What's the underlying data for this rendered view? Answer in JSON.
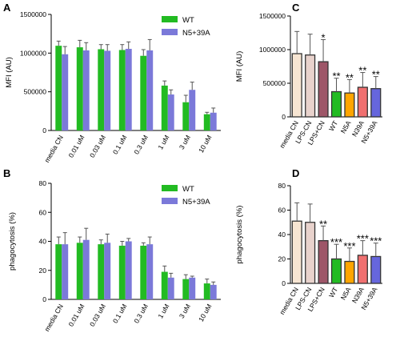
{
  "chart_data": [
    {
      "panel": "A",
      "type": "bar",
      "ylabel": "MFI (AU)",
      "ylim": [
        0,
        1500000
      ],
      "yticks": [
        "0",
        "500000",
        "1000000",
        "1500000"
      ],
      "categories": [
        "media CN",
        "0.01 uM",
        "0.03 uM",
        "0.1 uM",
        "0.3 uM",
        "1 uM",
        "3 uM",
        "10 uM"
      ],
      "legend": "top-right",
      "series": [
        {
          "name": "WT",
          "color": "#22bb22",
          "values": [
            1095000,
            1075000,
            1050000,
            1040000,
            965000,
            580000,
            365000,
            210000
          ],
          "errors": [
            60000,
            90000,
            60000,
            70000,
            80000,
            60000,
            90000,
            25000
          ]
        },
        {
          "name": "N5+39A",
          "color": "#7b79d9",
          "values": [
            985000,
            1035000,
            1030000,
            1055000,
            1035000,
            465000,
            525000,
            230000
          ],
          "errors": [
            100000,
            100000,
            80000,
            90000,
            140000,
            60000,
            100000,
            60000
          ]
        }
      ]
    },
    {
      "panel": "B",
      "type": "bar",
      "ylabel": "phagocytosis (%)",
      "ylim": [
        0,
        80
      ],
      "yticks": [
        "0",
        "20",
        "40",
        "60",
        "80"
      ],
      "categories": [
        "media CN",
        "0.01 uM",
        "0.03 uM",
        "0.1 uM",
        "0.3 uM",
        "1 uM",
        "3 uM",
        "10 uM"
      ],
      "legend": "top-right",
      "series": [
        {
          "name": "WT",
          "color": "#22bb22",
          "values": [
            38,
            39,
            38,
            37,
            37,
            19,
            14,
            11
          ],
          "errors": [
            5,
            4,
            3,
            3,
            2,
            4,
            3,
            3
          ]
        },
        {
          "name": "N5+39A",
          "color": "#7b79d9",
          "values": [
            38,
            41,
            39,
            40,
            38,
            15,
            15,
            10
          ],
          "errors": [
            8,
            8,
            6,
            2,
            5,
            3,
            1,
            2
          ]
        }
      ]
    },
    {
      "panel": "C",
      "type": "bar",
      "ylabel": "MFI (AU)",
      "ylim": [
        0,
        1500000
      ],
      "yticks": [
        "0",
        "500000",
        "1000000",
        "1500000"
      ],
      "categories": [
        "media CN",
        "LPS-CN",
        "LPS+CN",
        "WT",
        "N5A",
        "N39A",
        "N5+39A"
      ],
      "colors": [
        "#f7e5d2",
        "#e8d2cc",
        "#9e5668",
        "#22bb22",
        "#ffa500",
        "#f07070",
        "#6666dd"
      ],
      "values": [
        940000,
        920000,
        820000,
        375000,
        355000,
        440000,
        420000
      ],
      "errors": [
        330000,
        310000,
        330000,
        200000,
        200000,
        220000,
        180000
      ],
      "significance": [
        "",
        "",
        "*",
        "**",
        "**",
        "**",
        "**"
      ]
    },
    {
      "panel": "D",
      "type": "bar",
      "ylabel": "phagocytosis (%)",
      "ylim": [
        0,
        80
      ],
      "yticks": [
        "0",
        "20",
        "40",
        "60",
        "80"
      ],
      "categories": [
        "media CN",
        "LPS-CN",
        "LPS+CN",
        "WT",
        "N5A",
        "N39A",
        "N5+39A"
      ],
      "colors": [
        "#f7e5d2",
        "#e8d2cc",
        "#9e5668",
        "#22bb22",
        "#ffa500",
        "#f07070",
        "#6666dd"
      ],
      "values": [
        51,
        50,
        35,
        20,
        18,
        23,
        22
      ],
      "errors": [
        15,
        15,
        12,
        12,
        11,
        12,
        11
      ],
      "significance": [
        "",
        "",
        "**",
        "***",
        "***",
        "***",
        "***"
      ]
    }
  ]
}
